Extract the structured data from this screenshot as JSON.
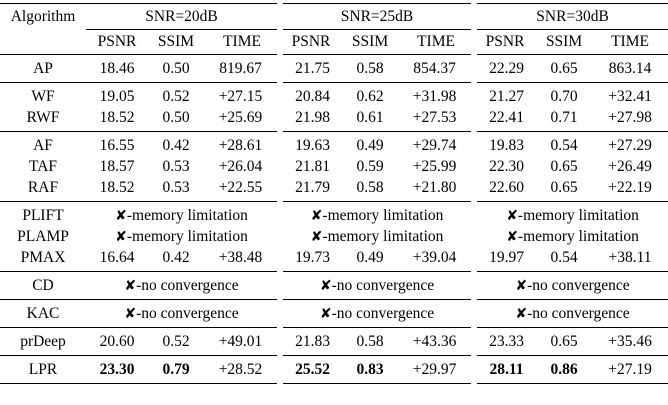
{
  "table": {
    "header": {
      "algorithm": "Algorithm",
      "snr_groups": [
        "SNR=20dB",
        "SNR=25dB",
        "SNR=30dB"
      ],
      "metrics": [
        "PSNR",
        "SSIM",
        "TIME"
      ]
    },
    "rows": {
      "AP": [
        [
          "18.46",
          "0.50",
          "819.67"
        ],
        [
          "21.75",
          "0.58",
          "854.37"
        ],
        [
          "22.29",
          "0.65",
          "863.14"
        ]
      ],
      "WF": [
        [
          "19.05",
          "0.52",
          "+27.15"
        ],
        [
          "20.84",
          "0.62",
          "+31.98"
        ],
        [
          "21.27",
          "0.70",
          "+32.41"
        ]
      ],
      "RWF": [
        [
          "18.52",
          "0.50",
          "+25.69"
        ],
        [
          "21.98",
          "0.61",
          "+27.53"
        ],
        [
          "22.41",
          "0.71",
          "+27.98"
        ]
      ],
      "AF": [
        [
          "16.55",
          "0.42",
          "+28.61"
        ],
        [
          "19.63",
          "0.49",
          "+29.74"
        ],
        [
          "19.83",
          "0.54",
          "+27.29"
        ]
      ],
      "TAF": [
        [
          "18.57",
          "0.53",
          "+26.04"
        ],
        [
          "21.81",
          "0.59",
          "+25.99"
        ],
        [
          "22.30",
          "0.65",
          "+26.49"
        ]
      ],
      "RAF": [
        [
          "18.52",
          "0.53",
          "+22.55"
        ],
        [
          "21.79",
          "0.58",
          "+21.80"
        ],
        [
          "22.60",
          "0.65",
          "+22.19"
        ]
      ],
      "PMAX": [
        [
          "16.64",
          "0.42",
          "+38.48"
        ],
        [
          "19.73",
          "0.49",
          "+39.04"
        ],
        [
          "19.97",
          "0.54",
          "+38.11"
        ]
      ],
      "prDeep": [
        [
          "20.60",
          "0.52",
          "+49.01"
        ],
        [
          "21.83",
          "0.58",
          "+43.36"
        ],
        [
          "23.33",
          "0.65",
          "+35.46"
        ]
      ],
      "LPR": [
        [
          "23.30",
          "0.79",
          "+28.52"
        ],
        [
          "25.52",
          "0.83",
          "+29.97"
        ],
        [
          "28.11",
          "0.86",
          "+27.19"
        ]
      ]
    },
    "names": {
      "AP": "AP",
      "WF": "WF",
      "RWF": "RWF",
      "AF": "AF",
      "TAF": "TAF",
      "RAF": "RAF",
      "PLIFT": "PLIFT",
      "PLAMP": "PLAMP",
      "PMAX": "PMAX",
      "CD": "CD",
      "KAC": "KAC",
      "prDeep": "prDeep",
      "LPR": "LPR"
    },
    "notes": {
      "cross_glyph": "✘",
      "memory": "-memory limitation",
      "convergence": "-no convergence"
    }
  }
}
